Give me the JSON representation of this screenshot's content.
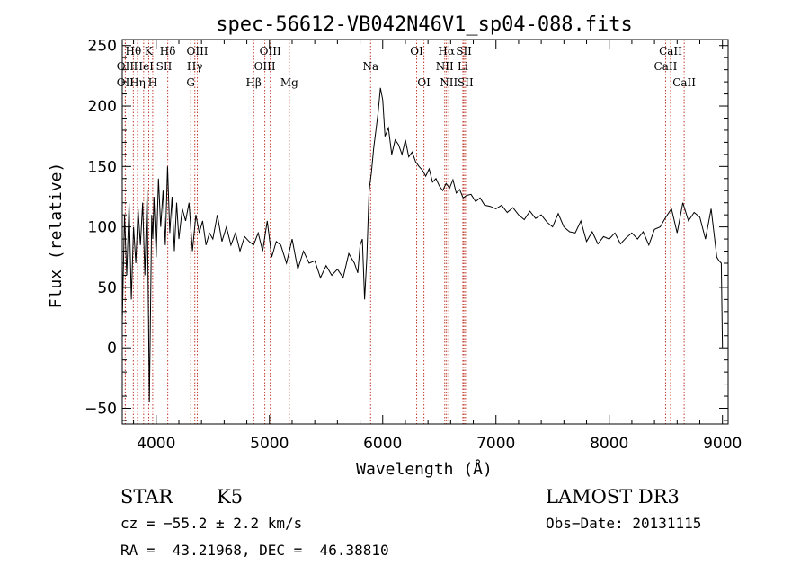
{
  "chart_data": {
    "type": "line",
    "title": "spec-56612-VB042N46V1_sp04-088.fits",
    "xlabel": "Wavelength (Å)",
    "ylabel": "Flux (relative)",
    "xlim": [
      3700,
      9050
    ],
    "ylim": [
      -63,
      255
    ],
    "xticks": [
      4000,
      5000,
      6000,
      7000,
      8000,
      9000
    ],
    "yticks": [
      -50,
      0,
      50,
      100,
      150,
      200,
      250
    ],
    "series": [
      {
        "name": "flux",
        "x": [
          3700,
          3720,
          3740,
          3760,
          3780,
          3800,
          3820,
          3840,
          3860,
          3880,
          3900,
          3920,
          3940,
          3960,
          3970,
          3980,
          4000,
          4020,
          4040,
          4060,
          4080,
          4100,
          4120,
          4140,
          4160,
          4180,
          4200,
          4230,
          4260,
          4290,
          4320,
          4350,
          4380,
          4410,
          4440,
          4470,
          4500,
          4540,
          4580,
          4620,
          4660,
          4700,
          4740,
          4780,
          4820,
          4860,
          4900,
          4940,
          4980,
          5020,
          5060,
          5100,
          5150,
          5200,
          5250,
          5300,
          5350,
          5400,
          5450,
          5500,
          5550,
          5600,
          5650,
          5700,
          5750,
          5780,
          5800,
          5820,
          5840,
          5860,
          5880,
          5900,
          5920,
          5940,
          5960,
          5980,
          6000,
          6020,
          6050,
          6080,
          6110,
          6140,
          6170,
          6200,
          6230,
          6260,
          6290,
          6320,
          6350,
          6380,
          6410,
          6440,
          6470,
          6500,
          6530,
          6560,
          6590,
          6620,
          6650,
          6680,
          6710,
          6740,
          6780,
          6820,
          6860,
          6900,
          6950,
          7000,
          7050,
          7100,
          7150,
          7200,
          7250,
          7300,
          7350,
          7400,
          7450,
          7500,
          7550,
          7600,
          7650,
          7700,
          7750,
          7800,
          7850,
          7900,
          7950,
          8000,
          8050,
          8100,
          8150,
          8200,
          8250,
          8300,
          8350,
          8400,
          8450,
          8500,
          8550,
          8600,
          8650,
          8700,
          8750,
          8800,
          8850,
          8900,
          8950,
          8970,
          8990,
          9000
        ],
        "values": [
          20,
          110,
          60,
          120,
          40,
          100,
          70,
          115,
          85,
          120,
          60,
          130,
          -45,
          110,
          90,
          125,
          75,
          140,
          100,
          130,
          85,
          150,
          95,
          125,
          80,
          120,
          90,
          115,
          105,
          120,
          80,
          110,
          95,
          105,
          85,
          95,
          90,
          110,
          88,
          100,
          85,
          95,
          80,
          92,
          88,
          85,
          95,
          80,
          105,
          75,
          88,
          85,
          70,
          90,
          65,
          80,
          70,
          72,
          58,
          68,
          60,
          65,
          58,
          78,
          70,
          62,
          85,
          90,
          40,
          75,
          130,
          145,
          165,
          180,
          195,
          215,
          205,
          175,
          182,
          160,
          172,
          168,
          160,
          172,
          158,
          162,
          154,
          150,
          147,
          142,
          148,
          137,
          140,
          134,
          130,
          136,
          132,
          139,
          128,
          131,
          124,
          126,
          127,
          121,
          124,
          118,
          117,
          115,
          118,
          112,
          116,
          110,
          106,
          113,
          107,
          110,
          104,
          100,
          111,
          100,
          96,
          95,
          105,
          88,
          96,
          86,
          92,
          90,
          95,
          86,
          91,
          95,
          90,
          96,
          85,
          98,
          100,
          108,
          115,
          95,
          120,
          105,
          112,
          108,
          90,
          115,
          75,
          72,
          70,
          0
        ]
      }
    ],
    "lines": [
      {
        "label": "Hθ",
        "wl": 3798,
        "row": 0
      },
      {
        "label": "OII",
        "wl": 3727,
        "row": 1
      },
      {
        "label": "OII",
        "wl": 3727,
        "row": 2
      },
      {
        "label": "K",
        "wl": 3934,
        "row": 0
      },
      {
        "label": "HeI",
        "wl": 3889,
        "row": 1
      },
      {
        "label": "Hη",
        "wl": 3835,
        "row": 2
      },
      {
        "label": "Hδ",
        "wl": 4102,
        "row": 0
      },
      {
        "label": "SII",
        "wl": 4069,
        "row": 1
      },
      {
        "label": "H",
        "wl": 3969,
        "row": 2
      },
      {
        "label": "OIII",
        "wl": 4363,
        "row": 0
      },
      {
        "label": "Hγ",
        "wl": 4341,
        "row": 1
      },
      {
        "label": "G",
        "wl": 4305,
        "row": 2
      },
      {
        "label": "OIII",
        "wl": 5007,
        "row": 0
      },
      {
        "label": "OIII",
        "wl": 4959,
        "row": 1
      },
      {
        "label": "Hβ",
        "wl": 4861,
        "row": 2
      },
      {
        "label": "Mg",
        "wl": 5175,
        "row": 2
      },
      {
        "label": "Na",
        "wl": 5893,
        "row": 1
      },
      {
        "label": "OI",
        "wl": 6300,
        "row": 0
      },
      {
        "label": "OI",
        "wl": 6364,
        "row": 2
      },
      {
        "label": "Hα",
        "wl": 6563,
        "row": 0
      },
      {
        "label": "SII",
        "wl": 6717,
        "row": 0
      },
      {
        "label": "NII",
        "wl": 6548,
        "row": 1
      },
      {
        "label": "Li",
        "wl": 6708,
        "row": 1
      },
      {
        "label": "NII",
        "wl": 6583,
        "row": 2
      },
      {
        "label": "SII",
        "wl": 6731,
        "row": 2
      },
      {
        "label": "CaII",
        "wl": 8542,
        "row": 0
      },
      {
        "label": "CaII",
        "wl": 8498,
        "row": 1
      },
      {
        "label": "CaII",
        "wl": 8662,
        "row": 2
      }
    ]
  },
  "info": {
    "object_type": "STAR",
    "subclass": "K5",
    "survey": "LAMOST DR3",
    "cz": "cz = −55.2 ± 2.2 km/s",
    "obs_date": "Obs−Date: 20131115",
    "coords": "RA =  43.21968, DEC =  46.38810"
  },
  "colors": {
    "line_marker": "#c0392b",
    "spectrum": "#000000",
    "axis": "#000000"
  }
}
